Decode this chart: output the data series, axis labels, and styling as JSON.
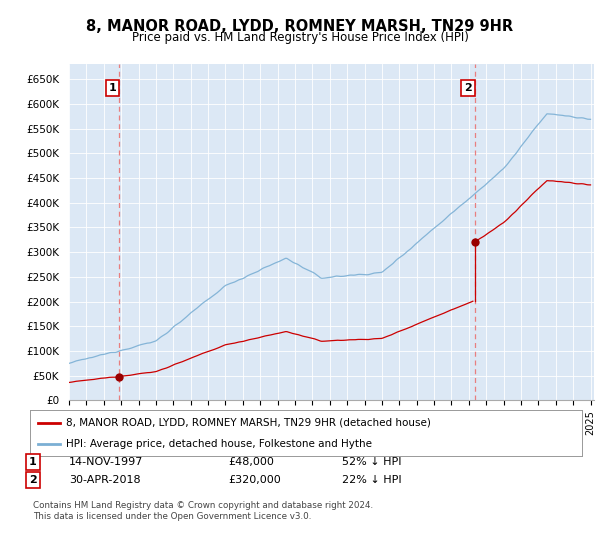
{
  "title": "8, MANOR ROAD, LYDD, ROMNEY MARSH, TN29 9HR",
  "subtitle": "Price paid vs. HM Land Registry's House Price Index (HPI)",
  "ylim": [
    0,
    680000
  ],
  "yticks": [
    0,
    50000,
    100000,
    150000,
    200000,
    250000,
    300000,
    350000,
    400000,
    450000,
    500000,
    550000,
    600000,
    650000
  ],
  "ytick_labels": [
    "£0",
    "£50K",
    "£100K",
    "£150K",
    "£200K",
    "£250K",
    "£300K",
    "£350K",
    "£400K",
    "£450K",
    "£500K",
    "£550K",
    "£600K",
    "£650K"
  ],
  "sale1_date": 1997.87,
  "sale1_price": 48000,
  "sale2_date": 2018.33,
  "sale2_price": 320000,
  "red_line_color": "#cc0000",
  "blue_line_color": "#7bafd4",
  "dashed_line_color": "#e87f7f",
  "marker_color": "#990000",
  "background_color": "#ffffff",
  "chart_bg_color": "#dce8f5",
  "grid_color": "#ffffff",
  "legend_label_red": "8, MANOR ROAD, LYDD, ROMNEY MARSH, TN29 9HR (detached house)",
  "legend_label_blue": "HPI: Average price, detached house, Folkestone and Hythe",
  "note1_date": "14-NOV-1997",
  "note1_price": "£48,000",
  "note1_hpi": "52% ↓ HPI",
  "note2_date": "30-APR-2018",
  "note2_price": "£320,000",
  "note2_hpi": "22% ↓ HPI",
  "footer": "Contains HM Land Registry data © Crown copyright and database right 2024.\nThis data is licensed under the Open Government Licence v3.0."
}
